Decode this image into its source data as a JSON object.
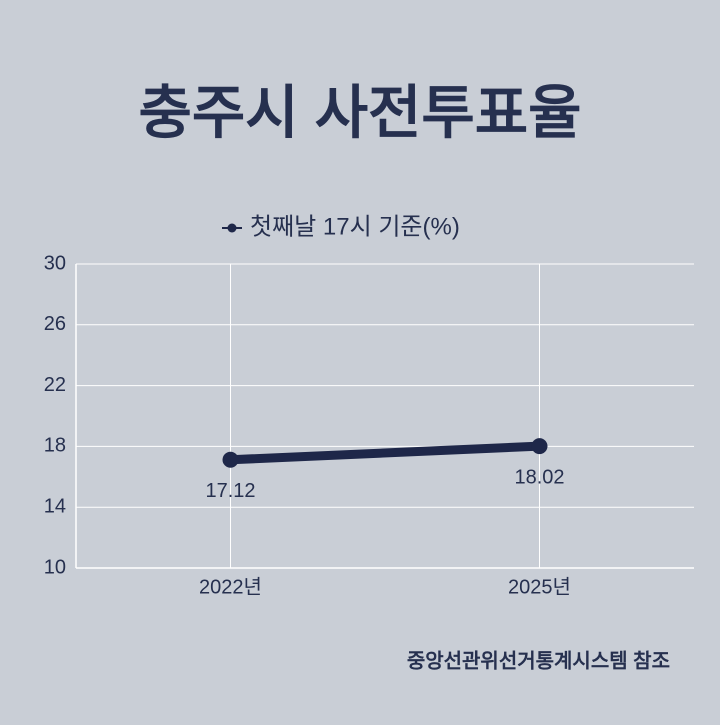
{
  "chart_data": {
    "type": "line",
    "title": "충주시 사전투표율",
    "categories": [
      "2022년",
      "2025년"
    ],
    "series": [
      {
        "name": "첫째날 17시 기준(%)",
        "color": "#1e2749",
        "values": [
          17.12,
          18.02
        ]
      }
    ],
    "ylim": [
      10,
      30
    ],
    "yticks": [
      10,
      14,
      18,
      22,
      26,
      30
    ],
    "grid": true,
    "legend": "top",
    "source": "중앙선관위선거통계시스템 참조"
  }
}
